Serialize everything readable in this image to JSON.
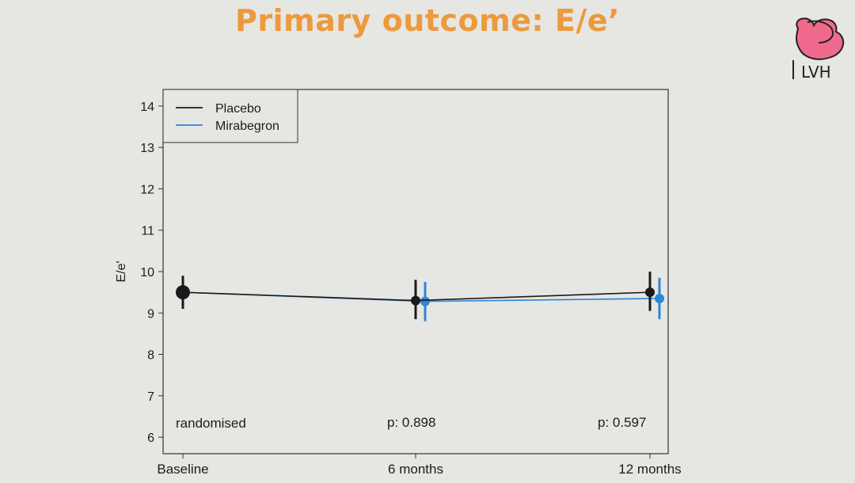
{
  "slide": {
    "title": "Primary outcome: E/e’",
    "logo_text": "LVH"
  },
  "colors": {
    "title": "#ec9a3c",
    "placebo": "#1a1a1a",
    "mirabegron": "#2a86d8",
    "logo_pink": "#ef6a8c"
  },
  "chart_data": {
    "type": "line",
    "ylabel": "E/e'",
    "categories": [
      "Baseline",
      "6 months",
      "12 months"
    ],
    "ylim": [
      5.6,
      14.4
    ],
    "yticks": [
      6,
      7,
      8,
      9,
      10,
      11,
      12,
      13,
      14
    ],
    "grid": false,
    "legend": {
      "position": "top-left"
    },
    "series": [
      {
        "name": "Placebo",
        "color": "#1a1a1a",
        "values": [
          9.5,
          9.3,
          9.5
        ],
        "ci_low": [
          9.1,
          8.85,
          9.05
        ],
        "ci_high": [
          9.9,
          9.8,
          10.0
        ]
      },
      {
        "name": "Mirabegron",
        "color": "#2a86d8",
        "values": [
          9.5,
          9.28,
          9.35
        ],
        "ci_low": [
          9.3,
          8.8,
          8.85
        ],
        "ci_high": [
          9.7,
          9.75,
          9.85
        ]
      }
    ],
    "annotations": [
      "randomised",
      "p:  0.898",
      "p:  0.597"
    ]
  }
}
